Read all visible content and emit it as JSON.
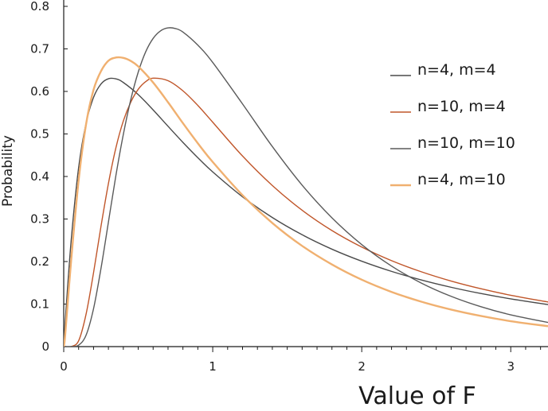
{
  "chart_data": {
    "type": "line",
    "title": "",
    "xlabel": "Value of F",
    "ylabel": "Probability",
    "xlim": [
      0,
      3.25
    ],
    "ylim": [
      0,
      0.8
    ],
    "x_ticks": [
      {
        "value": 0,
        "label": "0"
      },
      {
        "value": 1,
        "label": "1"
      },
      {
        "value": 2,
        "label": "2"
      },
      {
        "value": 3,
        "label": "3"
      }
    ],
    "y_ticks": [
      {
        "value": 0,
        "label": "0"
      },
      {
        "value": 0.1,
        "label": "0.1"
      },
      {
        "value": 0.2,
        "label": "0.2"
      },
      {
        "value": 0.3,
        "label": "0.3"
      },
      {
        "value": 0.4,
        "label": "0.4"
      },
      {
        "value": 0.5,
        "label": "0.5"
      },
      {
        "value": 0.6,
        "label": "0.6"
      },
      {
        "value": 0.7,
        "label": "0.7"
      },
      {
        "value": 0.8,
        "label": "0.8"
      }
    ],
    "grid": false,
    "legend_position": "right",
    "series": [
      {
        "name": "n=4, m=4",
        "color": "#4a4a4a",
        "points": [
          [
            0.01,
            0.0588
          ],
          [
            0.05,
            0.2494
          ],
          [
            0.1,
            0.4208
          ],
          [
            0.15,
            0.5253
          ],
          [
            0.2,
            0.5859
          ],
          [
            0.25,
            0.6174
          ],
          [
            0.3,
            0.6298
          ],
          [
            0.35,
            0.6295
          ],
          [
            0.4,
            0.621
          ],
          [
            0.5,
            0.5926
          ],
          [
            0.6,
            0.5566
          ],
          [
            0.7,
            0.5181
          ],
          [
            0.8,
            0.4802
          ],
          [
            0.9,
            0.4442
          ],
          [
            1.0,
            0.4108
          ],
          [
            1.2,
            0.3523
          ],
          [
            1.4,
            0.3035
          ],
          [
            1.6,
            0.263
          ],
          [
            1.8,
            0.2291
          ],
          [
            2.0,
            0.2008
          ],
          [
            2.2,
            0.1769
          ],
          [
            2.4,
            0.1567
          ],
          [
            2.6,
            0.1395
          ],
          [
            2.8,
            0.1248
          ],
          [
            3.0,
            0.1122
          ],
          [
            3.25,
            0.0988
          ]
        ]
      },
      {
        "name": "n=10, m=4",
        "color": "#c0562a",
        "points": [
          [
            0.01,
            0.0
          ],
          [
            0.05,
            0.0002
          ],
          [
            0.1,
            0.0136
          ],
          [
            0.15,
            0.0763
          ],
          [
            0.2,
            0.1735
          ],
          [
            0.25,
            0.2826
          ],
          [
            0.3,
            0.3835
          ],
          [
            0.35,
            0.4672
          ],
          [
            0.4,
            0.5305
          ],
          [
            0.45,
            0.5747
          ],
          [
            0.5,
            0.605
          ],
          [
            0.55,
            0.623
          ],
          [
            0.6,
            0.6312
          ],
          [
            0.7,
            0.6252
          ],
          [
            0.8,
            0.6014
          ],
          [
            0.9,
            0.5671
          ],
          [
            1.0,
            0.5276
          ],
          [
            1.2,
            0.4481
          ],
          [
            1.4,
            0.3788
          ],
          [
            1.6,
            0.3206
          ],
          [
            1.8,
            0.2729
          ],
          [
            2.0,
            0.2341
          ],
          [
            2.2,
            0.2021
          ],
          [
            2.4,
            0.1759
          ],
          [
            2.6,
            0.1541
          ],
          [
            2.8,
            0.136
          ],
          [
            3.0,
            0.1207
          ],
          [
            3.25,
            0.1049
          ]
        ]
      },
      {
        "name": "n=10, m=10",
        "color": "#5a5a5a",
        "points": [
          [
            0.01,
            0.0
          ],
          [
            0.05,
            0.0
          ],
          [
            0.1,
            0.0034
          ],
          [
            0.15,
            0.0268
          ],
          [
            0.2,
            0.089
          ],
          [
            0.25,
            0.1836
          ],
          [
            0.3,
            0.2928
          ],
          [
            0.35,
            0.402
          ],
          [
            0.4,
            0.4989
          ],
          [
            0.45,
            0.5807
          ],
          [
            0.5,
            0.6453
          ],
          [
            0.55,
            0.6931
          ],
          [
            0.6,
            0.7247
          ],
          [
            0.65,
            0.7425
          ],
          [
            0.7,
            0.7494
          ],
          [
            0.75,
            0.7478
          ],
          [
            0.8,
            0.7396
          ],
          [
            0.9,
            0.7088
          ],
          [
            1.0,
            0.6681
          ],
          [
            1.2,
            0.5706
          ],
          [
            1.4,
            0.4704
          ],
          [
            1.6,
            0.3796
          ],
          [
            1.8,
            0.3028
          ],
          [
            2.0,
            0.2399
          ],
          [
            2.2,
            0.1894
          ],
          [
            2.4,
            0.1494
          ],
          [
            2.6,
            0.1182
          ],
          [
            2.8,
            0.0938
          ],
          [
            3.0,
            0.0747
          ],
          [
            3.25,
            0.0568
          ]
        ]
      },
      {
        "name": "n=4, m=10",
        "color": "#f0b070",
        "points": [
          [
            0.01,
            0.0282
          ],
          [
            0.05,
            0.2032
          ],
          [
            0.1,
            0.3908
          ],
          [
            0.15,
            0.5228
          ],
          [
            0.2,
            0.6037
          ],
          [
            0.25,
            0.6475
          ],
          [
            0.3,
            0.6722
          ],
          [
            0.35,
            0.6797
          ],
          [
            0.4,
            0.6788
          ],
          [
            0.45,
            0.6716
          ],
          [
            0.5,
            0.6588
          ],
          [
            0.6,
            0.6209
          ],
          [
            0.7,
            0.5745
          ],
          [
            0.8,
            0.5253
          ],
          [
            0.9,
            0.4781
          ],
          [
            1.0,
            0.4341
          ],
          [
            1.2,
            0.356
          ],
          [
            1.4,
            0.2906
          ],
          [
            1.6,
            0.2368
          ],
          [
            1.8,
            0.1931
          ],
          [
            2.0,
            0.1573
          ],
          [
            2.2,
            0.1286
          ],
          [
            2.4,
            0.1056
          ],
          [
            2.6,
            0.087
          ],
          [
            2.8,
            0.072
          ],
          [
            3.0,
            0.0598
          ],
          [
            3.25,
            0.048
          ]
        ]
      }
    ]
  }
}
